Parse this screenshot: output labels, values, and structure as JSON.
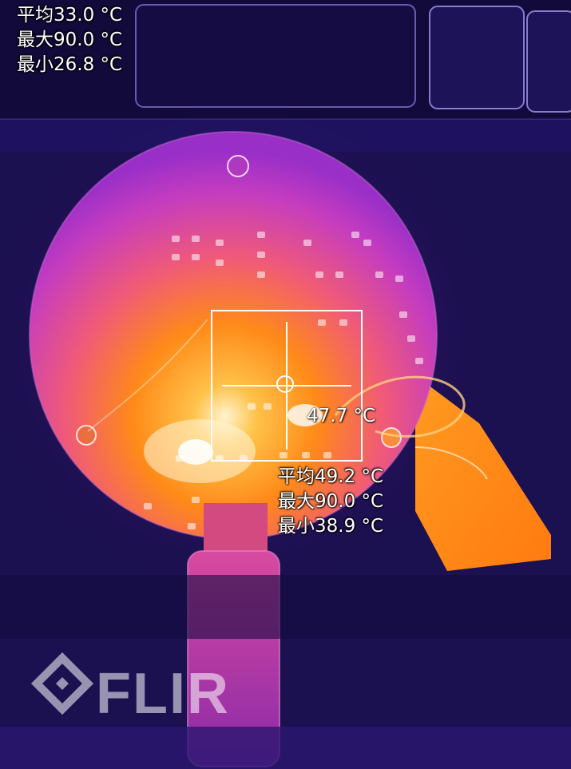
{
  "global_stats": {
    "avg": "平均33.0 °C",
    "max": "最大90.0 °C",
    "min": "最小26.8 °C"
  },
  "spot": {
    "center_temp": "47.7 °C",
    "avg": "平均49.2 °C",
    "max": "最大90.0 °C",
    "min": "最小38.9 °C"
  },
  "logo": {
    "text": "FLIR"
  },
  "colors": {
    "background": "#1a0f4a",
    "hot": "#ffb030",
    "warm": "#ff7a10",
    "mid": "#d83aa8",
    "cool": "#6a1fb0"
  }
}
